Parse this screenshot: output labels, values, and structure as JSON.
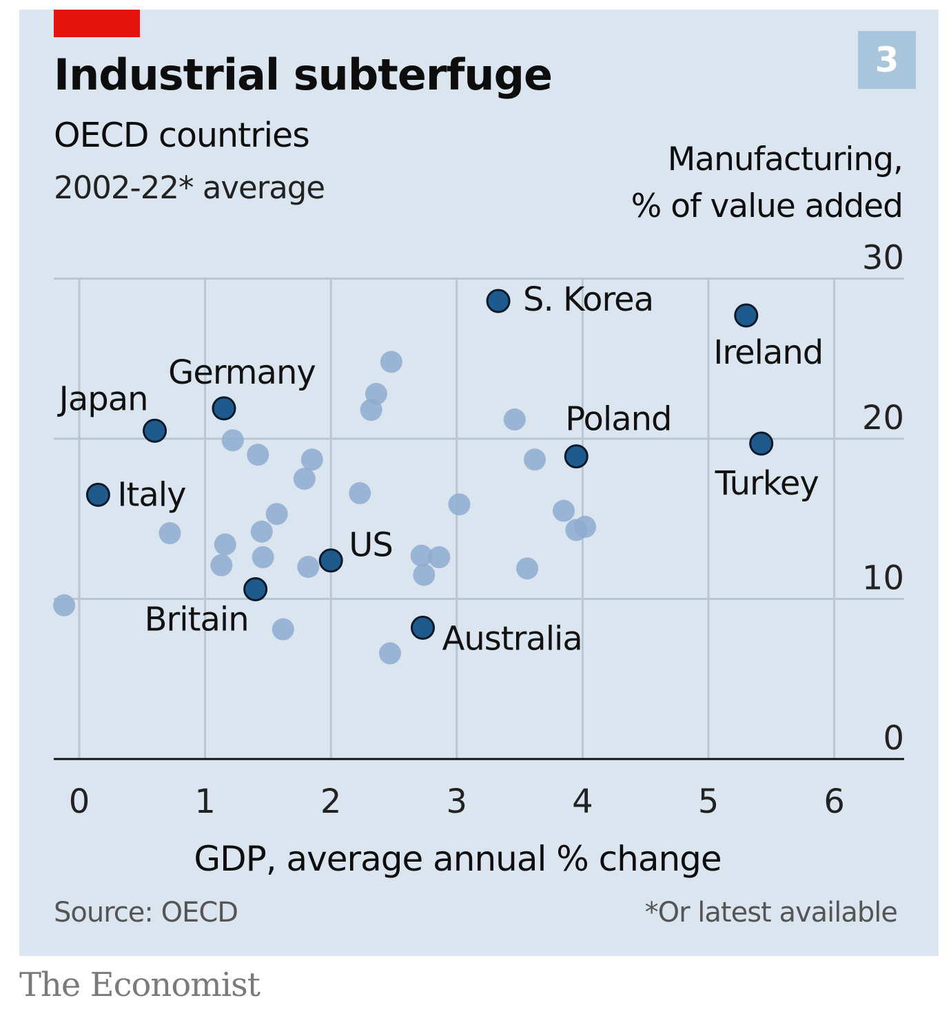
{
  "chart_number": "3",
  "brand": "The Economist",
  "colors": {
    "background": "#dae5ef",
    "accent_tag": "#e3120b",
    "highlight_point": "#1f5a8c",
    "other_point": "#8eabd0",
    "grid": "#b8c6d3"
  },
  "chart_data": {
    "type": "scatter",
    "title": "Industrial subterfuge",
    "subtitle": "OECD countries",
    "subtitle2": "2002-22* average",
    "xlabel": "GDP, average annual % change",
    "ylabel": [
      "Manufacturing,",
      "% of value added"
    ],
    "xlim": [
      -0.2,
      6.5
    ],
    "ylim": [
      0,
      30
    ],
    "xticks": [
      0,
      1,
      2,
      3,
      4,
      5,
      6
    ],
    "yticks": [
      0,
      10,
      20,
      30
    ],
    "grid": true,
    "source": "Source: OECD",
    "footnote": "*Or latest available",
    "highlighted": [
      {
        "name": "S. Korea",
        "x": 3.33,
        "y": 28.6
      },
      {
        "name": "Ireland",
        "x": 5.3,
        "y": 27.7
      },
      {
        "name": "Germany",
        "x": 1.15,
        "y": 21.9
      },
      {
        "name": "Japan",
        "x": 0.6,
        "y": 20.5
      },
      {
        "name": "Poland",
        "x": 3.95,
        "y": 18.9
      },
      {
        "name": "Turkey",
        "x": 5.42,
        "y": 19.7
      },
      {
        "name": "Italy",
        "x": 0.15,
        "y": 16.5
      },
      {
        "name": "US",
        "x": 2.0,
        "y": 12.4
      },
      {
        "name": "Britain",
        "x": 1.4,
        "y": 10.6
      },
      {
        "name": "Australia",
        "x": 2.73,
        "y": 8.2
      }
    ],
    "others": [
      {
        "x": 2.48,
        "y": 24.8
      },
      {
        "x": 2.36,
        "y": 22.8
      },
      {
        "x": 2.32,
        "y": 21.8
      },
      {
        "x": 3.46,
        "y": 21.2
      },
      {
        "x": 1.22,
        "y": 19.9
      },
      {
        "x": 1.42,
        "y": 19.0
      },
      {
        "x": 1.85,
        "y": 18.7
      },
      {
        "x": 3.62,
        "y": 18.7
      },
      {
        "x": 1.79,
        "y": 17.5
      },
      {
        "x": 2.23,
        "y": 16.6
      },
      {
        "x": 3.02,
        "y": 15.9
      },
      {
        "x": 3.85,
        "y": 15.5
      },
      {
        "x": 4.02,
        "y": 14.5
      },
      {
        "x": 3.95,
        "y": 14.3
      },
      {
        "x": 1.57,
        "y": 15.3
      },
      {
        "x": 1.45,
        "y": 14.2
      },
      {
        "x": 0.72,
        "y": 14.1
      },
      {
        "x": 1.16,
        "y": 13.4
      },
      {
        "x": 1.46,
        "y": 12.6
      },
      {
        "x": 2.72,
        "y": 12.7
      },
      {
        "x": 2.86,
        "y": 12.6
      },
      {
        "x": 1.13,
        "y": 12.1
      },
      {
        "x": 1.82,
        "y": 12.0
      },
      {
        "x": 2.74,
        "y": 11.5
      },
      {
        "x": 3.56,
        "y": 11.9
      },
      {
        "x": -0.12,
        "y": 9.6
      },
      {
        "x": 1.62,
        "y": 8.1
      },
      {
        "x": 2.47,
        "y": 6.6
      }
    ]
  }
}
